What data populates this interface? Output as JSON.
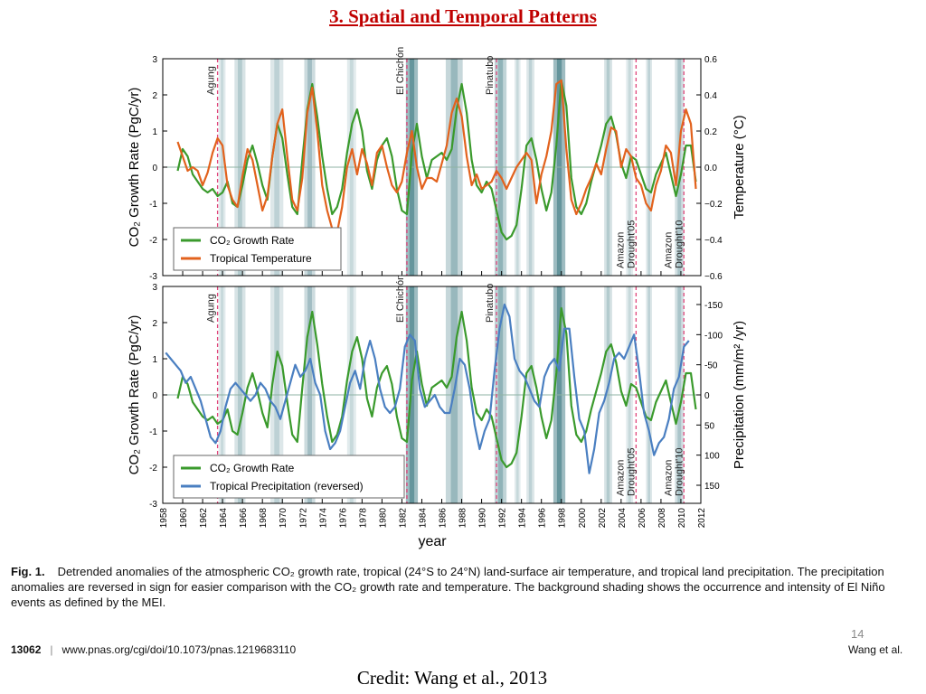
{
  "slide": {
    "title": "3. Spatial and Temporal Patterns",
    "page_number": "14",
    "credit": "Credit: Wang et al., 2013"
  },
  "caption": {
    "label": "Fig. 1.",
    "text": "Detrended anomalies of the atmospheric CO₂ growth rate, tropical (24°S to 24°N) land-surface air temperature, and tropical land precipitation. The precipitation anomalies are reversed in sign for easier comparison with the CO₂ growth rate and temperature. The background shading shows the occurrence and intensity of El Niño events as defined by the MEI."
  },
  "footer": {
    "page": "13062",
    "separator": "|",
    "url": "www.pnas.org/cgi/doi/10.1073/pnas.1219683110",
    "author": "Wang et al."
  },
  "colors": {
    "title": "#c00000",
    "co2": "#3a9a2c",
    "temperature": "#e2621d",
    "precipitation": "#4a7fc1",
    "event_line": "#e0457a",
    "shading": "#2f6f7a",
    "zero_line": "#8fb3a4"
  },
  "chart_data": [
    {
      "type": "line",
      "xlabel": "",
      "ylabel_left": "CO₂ Growth Rate (PgC/yr)",
      "ylabel_right": "Temperature (°C)",
      "xlim": [
        1958,
        2012
      ],
      "ylim_left": [
        -3,
        3
      ],
      "ylim_right": [
        -0.6,
        0.6
      ],
      "yticks_left": [
        -3,
        -2,
        -1,
        0,
        1,
        2,
        3
      ],
      "yticks_right": [
        "−0.6",
        "−0.4",
        "−0.2",
        "0.0",
        "0.2",
        "0.4",
        "0.6"
      ],
      "legend": "bottom-left",
      "events": [
        {
          "name": "Agung",
          "x": 1963.5
        },
        {
          "name": "El Chichón",
          "x": 1982.5
        },
        {
          "name": "Pinatubo",
          "x": 1991.5
        }
      ],
      "drought_labels": [
        {
          "line1": "Amazon",
          "line2": "Drought'05",
          "x": 2005.5
        },
        {
          "line1": "Amazon",
          "line2": "Drought'10",
          "x": 2010.3
        }
      ],
      "series": [
        {
          "name": "CO₂ Growth Rate",
          "axis": "left",
          "x": [
            1959.5,
            1960.0,
            1960.5,
            1961.0,
            1961.5,
            1962.0,
            1962.5,
            1963.0,
            1963.5,
            1964.0,
            1964.5,
            1965.0,
            1965.5,
            1966.0,
            1966.5,
            1967.0,
            1967.5,
            1968.0,
            1968.5,
            1969.0,
            1969.5,
            1970.0,
            1970.5,
            1971.0,
            1971.5,
            1972.0,
            1972.5,
            1973.0,
            1973.5,
            1974.0,
            1974.5,
            1975.0,
            1975.5,
            1976.0,
            1976.5,
            1977.0,
            1977.5,
            1978.0,
            1978.5,
            1979.0,
            1979.5,
            1980.0,
            1980.5,
            1981.0,
            1981.5,
            1982.0,
            1982.5,
            1983.0,
            1983.5,
            1984.0,
            1984.5,
            1985.0,
            1985.5,
            1986.0,
            1986.5,
            1987.0,
            1987.5,
            1988.0,
            1988.5,
            1989.0,
            1989.5,
            1990.0,
            1990.5,
            1991.0,
            1991.5,
            1992.0,
            1992.5,
            1993.0,
            1993.5,
            1994.0,
            1994.5,
            1995.0,
            1995.5,
            1996.0,
            1996.5,
            1997.0,
            1997.5,
            1998.0,
            1998.5,
            1999.0,
            1999.5,
            2000.0,
            2000.5,
            2001.0,
            2001.5,
            2002.0,
            2002.5,
            2003.0,
            2003.5,
            2004.0,
            2004.5,
            2005.0,
            2005.5,
            2006.0,
            2006.5,
            2007.0,
            2007.5,
            2008.0,
            2008.5,
            2009.0,
            2009.5,
            2010.0,
            2010.5,
            2011.0,
            2011.5
          ],
          "y": [
            -0.1,
            0.5,
            0.3,
            -0.2,
            -0.4,
            -0.6,
            -0.7,
            -0.6,
            -0.8,
            -0.7,
            -0.4,
            -1.0,
            -1.1,
            -0.5,
            0.2,
            0.6,
            0.1,
            -0.5,
            -0.9,
            0.3,
            1.2,
            0.8,
            -0.2,
            -1.1,
            -1.3,
            0.2,
            1.6,
            2.3,
            1.4,
            0.3,
            -0.6,
            -1.3,
            -1.1,
            -0.6,
            0.4,
            1.2,
            1.6,
            1.0,
            -0.1,
            -0.6,
            0.2,
            0.6,
            0.8,
            0.3,
            -0.6,
            -1.2,
            -1.3,
            0.4,
            1.2,
            0.3,
            -0.3,
            0.2,
            0.3,
            0.4,
            0.2,
            0.5,
            1.6,
            2.3,
            1.5,
            0.2,
            -0.5,
            -0.7,
            -0.4,
            -0.6,
            -1.2,
            -1.8,
            -2.0,
            -1.9,
            -1.6,
            -0.6,
            0.6,
            0.8,
            0.2,
            -0.6,
            -1.2,
            -0.7,
            0.6,
            2.4,
            1.7,
            -0.3,
            -1.1,
            -1.3,
            -1.0,
            -0.4,
            0.1,
            0.6,
            1.2,
            1.4,
            0.9,
            0.1,
            -0.3,
            0.3,
            0.2,
            -0.2,
            -0.6,
            -0.7,
            -0.2,
            0.1,
            0.4,
            -0.2,
            -0.8,
            -0.2,
            0.6,
            0.6,
            -0.4
          ]
        },
        {
          "name": "Tropical Temperature",
          "axis": "right",
          "x": [
            1959.5,
            1960.0,
            1960.5,
            1961.0,
            1961.5,
            1962.0,
            1962.5,
            1963.0,
            1963.5,
            1964.0,
            1964.5,
            1965.0,
            1965.5,
            1966.0,
            1966.5,
            1967.0,
            1967.5,
            1968.0,
            1968.5,
            1969.0,
            1969.5,
            1970.0,
            1970.5,
            1971.0,
            1971.5,
            1972.0,
            1972.5,
            1973.0,
            1973.5,
            1974.0,
            1974.5,
            1975.0,
            1975.5,
            1976.0,
            1976.5,
            1977.0,
            1977.5,
            1978.0,
            1978.5,
            1979.0,
            1979.5,
            1980.0,
            1980.5,
            1981.0,
            1981.5,
            1982.0,
            1982.5,
            1983.0,
            1983.5,
            1984.0,
            1984.5,
            1985.0,
            1985.5,
            1986.0,
            1986.5,
            1987.0,
            1987.5,
            1988.0,
            1988.5,
            1989.0,
            1989.5,
            1990.0,
            1990.5,
            1991.0,
            1991.5,
            1992.0,
            1992.5,
            1993.0,
            1993.5,
            1994.0,
            1994.5,
            1995.0,
            1995.5,
            1996.0,
            1996.5,
            1997.0,
            1997.5,
            1998.0,
            1998.5,
            1999.0,
            1999.5,
            2000.0,
            2000.5,
            2001.0,
            2001.5,
            2002.0,
            2002.5,
            2003.0,
            2003.5,
            2004.0,
            2004.5,
            2005.0,
            2005.5,
            2006.0,
            2006.5,
            2007.0,
            2007.5,
            2008.0,
            2008.5,
            2009.0,
            2009.5,
            2010.0,
            2010.5,
            2011.0,
            2011.5
          ],
          "y": [
            0.14,
            0.06,
            -0.02,
            0.0,
            -0.02,
            -0.1,
            -0.03,
            0.08,
            0.16,
            0.12,
            -0.1,
            -0.18,
            -0.22,
            -0.05,
            0.1,
            0.04,
            -0.1,
            -0.24,
            -0.16,
            0.06,
            0.24,
            0.32,
            0.06,
            -0.18,
            -0.24,
            -0.06,
            0.3,
            0.44,
            0.2,
            -0.1,
            -0.24,
            -0.34,
            -0.36,
            -0.22,
            0.0,
            0.1,
            -0.04,
            0.1,
            0.02,
            -0.1,
            0.08,
            0.12,
            0.0,
            -0.1,
            -0.14,
            -0.08,
            0.08,
            0.2,
            0.0,
            -0.12,
            -0.06,
            -0.06,
            -0.08,
            0.02,
            0.12,
            0.3,
            0.38,
            0.28,
            0.06,
            -0.1,
            -0.04,
            -0.12,
            -0.1,
            -0.08,
            -0.02,
            -0.06,
            -0.12,
            -0.06,
            0.0,
            0.04,
            0.08,
            0.04,
            -0.2,
            -0.04,
            0.06,
            0.2,
            0.46,
            0.48,
            0.1,
            -0.18,
            -0.26,
            -0.2,
            -0.12,
            -0.06,
            0.02,
            -0.04,
            0.1,
            0.22,
            0.2,
            0.0,
            0.1,
            0.06,
            -0.06,
            -0.1,
            -0.2,
            -0.24,
            -0.1,
            -0.02,
            0.12,
            0.08,
            -0.1,
            0.2,
            0.32,
            0.24,
            -0.12
          ]
        }
      ]
    },
    {
      "type": "line",
      "xlabel": "year",
      "ylabel_left": "CO₂ Growth Rate (PgC/yr)",
      "ylabel_right": "Precipitation (mm/m² /yr)",
      "xlim": [
        1958,
        2012
      ],
      "ylim_left": [
        -3,
        3
      ],
      "ylim_right": [
        180,
        -180
      ],
      "xticks": [
        "1958",
        "1960",
        "1962",
        "1964",
        "1966",
        "1968",
        "1970",
        "1972",
        "1974",
        "1976",
        "1978",
        "1980",
        "1982",
        "1984",
        "1986",
        "1988",
        "1990",
        "1992",
        "1994",
        "1996",
        "1998",
        "2000",
        "2002",
        "2004",
        "2006",
        "2008",
        "2010",
        "2012"
      ],
      "yticks_left": [
        -3,
        -2,
        -1,
        0,
        1,
        2,
        3
      ],
      "yticks_right": [
        "-150",
        "-100",
        "-50",
        "0",
        "50",
        "100",
        "150"
      ],
      "legend": "bottom-left",
      "events": [
        {
          "name": "Agung",
          "x": 1963.5
        },
        {
          "name": "El Chichón",
          "x": 1982.5
        },
        {
          "name": "Pinatubo",
          "x": 1991.5
        }
      ],
      "drought_labels": [
        {
          "line1": "Amazon",
          "line2": "Drought'05",
          "x": 2005.5
        },
        {
          "line1": "Amazon",
          "line2": "Drought'10",
          "x": 2010.3
        }
      ],
      "series": [
        {
          "name": "CO₂ Growth Rate",
          "axis": "left",
          "x": [
            1959.5,
            1960.0,
            1960.5,
            1961.0,
            1961.5,
            1962.0,
            1962.5,
            1963.0,
            1963.5,
            1964.0,
            1964.5,
            1965.0,
            1965.5,
            1966.0,
            1966.5,
            1967.0,
            1967.5,
            1968.0,
            1968.5,
            1969.0,
            1969.5,
            1970.0,
            1970.5,
            1971.0,
            1971.5,
            1972.0,
            1972.5,
            1973.0,
            1973.5,
            1974.0,
            1974.5,
            1975.0,
            1975.5,
            1976.0,
            1976.5,
            1977.0,
            1977.5,
            1978.0,
            1978.5,
            1979.0,
            1979.5,
            1980.0,
            1980.5,
            1981.0,
            1981.5,
            1982.0,
            1982.5,
            1983.0,
            1983.5,
            1984.0,
            1984.5,
            1985.0,
            1985.5,
            1986.0,
            1986.5,
            1987.0,
            1987.5,
            1988.0,
            1988.5,
            1989.0,
            1989.5,
            1990.0,
            1990.5,
            1991.0,
            1991.5,
            1992.0,
            1992.5,
            1993.0,
            1993.5,
            1994.0,
            1994.5,
            1995.0,
            1995.5,
            1996.0,
            1996.5,
            1997.0,
            1997.5,
            1998.0,
            1998.5,
            1999.0,
            1999.5,
            2000.0,
            2000.5,
            2001.0,
            2001.5,
            2002.0,
            2002.5,
            2003.0,
            2003.5,
            2004.0,
            2004.5,
            2005.0,
            2005.5,
            2006.0,
            2006.5,
            2007.0,
            2007.5,
            2008.0,
            2008.5,
            2009.0,
            2009.5,
            2010.0,
            2010.5,
            2011.0,
            2011.5
          ],
          "y": [
            -0.1,
            0.5,
            0.3,
            -0.2,
            -0.4,
            -0.6,
            -0.7,
            -0.6,
            -0.8,
            -0.7,
            -0.4,
            -1.0,
            -1.1,
            -0.5,
            0.2,
            0.6,
            0.1,
            -0.5,
            -0.9,
            0.3,
            1.2,
            0.8,
            -0.2,
            -1.1,
            -1.3,
            0.2,
            1.6,
            2.3,
            1.4,
            0.3,
            -0.6,
            -1.3,
            -1.1,
            -0.6,
            0.4,
            1.2,
            1.6,
            1.0,
            -0.1,
            -0.6,
            0.2,
            0.6,
            0.8,
            0.3,
            -0.6,
            -1.2,
            -1.3,
            0.4,
            1.2,
            0.3,
            -0.3,
            0.2,
            0.3,
            0.4,
            0.2,
            0.5,
            1.6,
            2.3,
            1.5,
            0.2,
            -0.5,
            -0.7,
            -0.4,
            -0.6,
            -1.2,
            -1.8,
            -2.0,
            -1.9,
            -1.6,
            -0.6,
            0.6,
            0.8,
            0.2,
            -0.6,
            -1.2,
            -0.7,
            0.6,
            2.4,
            1.7,
            -0.3,
            -1.1,
            -1.3,
            -1.0,
            -0.4,
            0.1,
            0.6,
            1.2,
            1.4,
            0.9,
            0.1,
            -0.3,
            0.3,
            0.2,
            -0.2,
            -0.6,
            -0.7,
            -0.2,
            0.1,
            0.4,
            -0.2,
            -0.8,
            -0.2,
            0.6,
            0.6,
            -0.4
          ]
        },
        {
          "name": "Tropical Precipitation (reversed)",
          "axis": "right",
          "x": [
            1958.3,
            1958.8,
            1959.3,
            1959.8,
            1960.3,
            1960.8,
            1961.3,
            1961.8,
            1962.3,
            1962.8,
            1963.3,
            1963.8,
            1964.3,
            1964.8,
            1965.3,
            1965.8,
            1966.3,
            1966.8,
            1967.3,
            1967.8,
            1968.3,
            1968.8,
            1969.3,
            1969.8,
            1970.3,
            1970.8,
            1971.3,
            1971.8,
            1972.3,
            1972.8,
            1973.3,
            1973.8,
            1974.3,
            1974.8,
            1975.3,
            1975.8,
            1976.3,
            1976.8,
            1977.3,
            1977.8,
            1978.3,
            1978.8,
            1979.3,
            1979.8,
            1980.3,
            1980.8,
            1981.3,
            1981.8,
            1982.3,
            1982.8,
            1983.3,
            1983.8,
            1984.3,
            1984.8,
            1985.3,
            1985.8,
            1986.3,
            1986.8,
            1987.3,
            1987.8,
            1988.3,
            1988.8,
            1989.3,
            1989.8,
            1990.3,
            1990.8,
            1991.3,
            1991.8,
            1992.3,
            1992.8,
            1993.3,
            1993.8,
            1994.3,
            1994.8,
            1995.3,
            1995.8,
            1996.3,
            1996.8,
            1997.3,
            1997.8,
            1998.3,
            1998.8,
            1999.3,
            1999.8,
            2000.3,
            2000.8,
            2001.3,
            2001.8,
            2002.3,
            2002.8,
            2003.3,
            2003.8,
            2004.3,
            2004.8,
            2005.3,
            2005.8,
            2006.3,
            2006.8,
            2007.3,
            2007.8,
            2008.3,
            2008.8,
            2009.3,
            2009.8,
            2010.3,
            2010.8
          ],
          "y": [
            -70,
            -60,
            -50,
            -40,
            -20,
            -30,
            -10,
            10,
            40,
            70,
            80,
            60,
            20,
            -10,
            -20,
            -10,
            0,
            10,
            0,
            -20,
            -10,
            10,
            20,
            40,
            10,
            -20,
            -50,
            -30,
            -40,
            -60,
            -20,
            0,
            60,
            90,
            80,
            60,
            20,
            -20,
            -40,
            -10,
            -60,
            -90,
            -60,
            -10,
            20,
            30,
            20,
            -10,
            -80,
            -100,
            -90,
            -10,
            20,
            10,
            0,
            20,
            30,
            30,
            -10,
            -60,
            -50,
            -10,
            50,
            90,
            60,
            40,
            -40,
            -110,
            -150,
            -130,
            -60,
            -40,
            -30,
            -10,
            10,
            20,
            -30,
            -50,
            -60,
            -40,
            -110,
            -110,
            -30,
            40,
            60,
            130,
            90,
            30,
            10,
            -20,
            -60,
            -70,
            -60,
            -80,
            -100,
            -40,
            30,
            60,
            100,
            80,
            70,
            40,
            -10,
            -30,
            -80,
            -90
          ]
        }
      ]
    }
  ]
}
